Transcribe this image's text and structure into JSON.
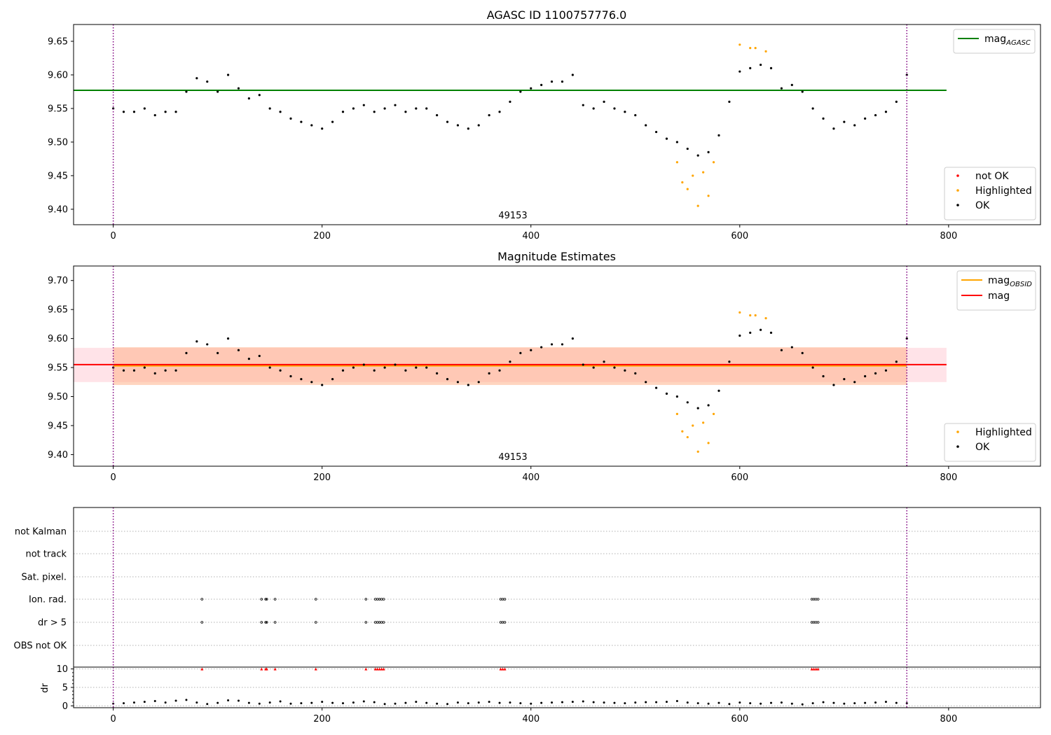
{
  "chart_data": [
    {
      "type": "scatter",
      "title": "AGASC ID 1100757776.0",
      "obsid_label": "49153",
      "xlim": [
        -38,
        888
      ],
      "ylim": [
        9.377,
        9.675
      ],
      "xticks": [
        0,
        200,
        400,
        600,
        800
      ],
      "yticks": [
        9.4,
        9.45,
        9.5,
        9.55,
        9.6,
        9.65
      ],
      "xticklabels": [
        "0",
        "200",
        "400",
        "600",
        "800"
      ],
      "yticklabels": [
        "9.40",
        "9.45",
        "9.50",
        "9.55",
        "9.60",
        "9.65"
      ],
      "vlines": [
        0,
        760
      ],
      "hlines": [
        {
          "name": "mag_AGASC",
          "value": 9.577,
          "x": [
            -38,
            798
          ],
          "color": "#008000"
        }
      ],
      "legend_lines": [
        {
          "label": "mag",
          "sub": "AGASC",
          "color": "#008000"
        }
      ],
      "legend_points": [
        {
          "label": "not OK",
          "color": "#ff0000"
        },
        {
          "label": "Highlighted",
          "color": "#ffa500"
        },
        {
          "label": "OK",
          "color": "#000000"
        }
      ],
      "series": [
        {
          "name": "OK",
          "color": "#000000",
          "x": [
            0,
            10,
            20,
            30,
            40,
            50,
            60,
            70,
            80,
            90,
            100,
            110,
            120,
            130,
            140,
            150,
            160,
            170,
            180,
            190,
            200,
            210,
            220,
            230,
            240,
            250,
            260,
            270,
            280,
            290,
            300,
            310,
            320,
            330,
            340,
            350,
            360,
            370,
            380,
            390,
            400,
            410,
            420,
            430,
            440,
            450,
            460,
            470,
            480,
            490,
            500,
            510,
            520,
            530,
            540,
            550,
            560,
            570,
            580,
            590,
            600,
            610,
            620,
            630,
            640,
            650,
            660,
            670,
            680,
            690,
            700,
            710,
            720,
            730,
            740,
            750,
            760
          ],
          "y": [
            9.55,
            9.545,
            9.545,
            9.55,
            9.54,
            9.545,
            9.545,
            9.575,
            9.595,
            9.59,
            9.575,
            9.6,
            9.58,
            9.565,
            9.57,
            9.55,
            9.545,
            9.535,
            9.53,
            9.525,
            9.52,
            9.53,
            9.545,
            9.55,
            9.555,
            9.545,
            9.55,
            9.555,
            9.545,
            9.55,
            9.55,
            9.54,
            9.53,
            9.525,
            9.52,
            9.525,
            9.54,
            9.545,
            9.56,
            9.575,
            9.58,
            9.585,
            9.59,
            9.59,
            9.6,
            9.555,
            9.55,
            9.56,
            9.55,
            9.545,
            9.54,
            9.525,
            9.515,
            9.505,
            9.5,
            9.49,
            9.48,
            9.485,
            9.51,
            9.56,
            9.605,
            9.61,
            9.615,
            9.61,
            9.58,
            9.585,
            9.575,
            9.55,
            9.535,
            9.52,
            9.53,
            9.525,
            9.535,
            9.54,
            9.545,
            9.56,
            9.6
          ]
        },
        {
          "name": "Highlighted",
          "color": "#ffa500",
          "x": [
            540,
            545,
            550,
            555,
            560,
            565,
            570,
            575,
            600,
            610,
            615,
            625
          ],
          "y": [
            9.47,
            9.44,
            9.43,
            9.45,
            9.405,
            9.455,
            9.42,
            9.47,
            9.645,
            9.64,
            9.64,
            9.635
          ]
        }
      ],
      "annotations": [
        "49153"
      ]
    },
    {
      "type": "scatter",
      "title": "Magnitude Estimates",
      "obsid_label": "49153",
      "xlim": [
        -38,
        888
      ],
      "ylim": [
        9.38,
        9.725
      ],
      "xticks": [
        0,
        200,
        400,
        600,
        800
      ],
      "yticks": [
        9.4,
        9.45,
        9.5,
        9.55,
        9.6,
        9.65,
        9.7
      ],
      "xticklabels": [
        "0",
        "200",
        "400",
        "600",
        "800"
      ],
      "yticklabels": [
        "9.40",
        "9.45",
        "9.50",
        "9.55",
        "9.60",
        "9.65",
        "9.70"
      ],
      "vlines": [
        0,
        760
      ],
      "bands": [
        {
          "name": "mag band",
          "x": [
            -38,
            798
          ],
          "y": [
            9.525,
            9.584
          ],
          "color": "#ffc0cb"
        },
        {
          "name": "mag_OBSID band",
          "x": [
            0,
            760
          ],
          "y": [
            9.52,
            9.585
          ],
          "color": "#ffb38a"
        }
      ],
      "hlines": [
        {
          "name": "mag_OBSID",
          "value": 9.553,
          "x": [
            0,
            760
          ],
          "color": "#ffa500"
        },
        {
          "name": "mag",
          "value": 9.555,
          "x": [
            -38,
            798
          ],
          "color": "#ff0000"
        }
      ],
      "legend_lines": [
        {
          "label": "mag",
          "sub": "OBSID",
          "color": "#ffa500"
        },
        {
          "label": "mag",
          "sub": "",
          "color": "#ff0000"
        }
      ],
      "legend_points": [
        {
          "label": "Highlighted",
          "color": "#ffa500"
        },
        {
          "label": "OK",
          "color": "#000000"
        }
      ],
      "series": [
        {
          "name": "OK",
          "color": "#000000",
          "x": [
            0,
            10,
            20,
            30,
            40,
            50,
            60,
            70,
            80,
            90,
            100,
            110,
            120,
            130,
            140,
            150,
            160,
            170,
            180,
            190,
            200,
            210,
            220,
            230,
            240,
            250,
            260,
            270,
            280,
            290,
            300,
            310,
            320,
            330,
            340,
            350,
            360,
            370,
            380,
            390,
            400,
            410,
            420,
            430,
            440,
            450,
            460,
            470,
            480,
            490,
            500,
            510,
            520,
            530,
            540,
            550,
            560,
            570,
            580,
            590,
            600,
            610,
            620,
            630,
            640,
            650,
            660,
            670,
            680,
            690,
            700,
            710,
            720,
            730,
            740,
            750,
            760
          ],
          "y": [
            9.55,
            9.545,
            9.545,
            9.55,
            9.54,
            9.545,
            9.545,
            9.575,
            9.595,
            9.59,
            9.575,
            9.6,
            9.58,
            9.565,
            9.57,
            9.55,
            9.545,
            9.535,
            9.53,
            9.525,
            9.52,
            9.53,
            9.545,
            9.55,
            9.555,
            9.545,
            9.55,
            9.555,
            9.545,
            9.55,
            9.55,
            9.54,
            9.53,
            9.525,
            9.52,
            9.525,
            9.54,
            9.545,
            9.56,
            9.575,
            9.58,
            9.585,
            9.59,
            9.59,
            9.6,
            9.555,
            9.55,
            9.56,
            9.55,
            9.545,
            9.54,
            9.525,
            9.515,
            9.505,
            9.5,
            9.49,
            9.48,
            9.485,
            9.51,
            9.56,
            9.605,
            9.61,
            9.615,
            9.61,
            9.58,
            9.585,
            9.575,
            9.55,
            9.535,
            9.52,
            9.53,
            9.525,
            9.535,
            9.54,
            9.545,
            9.56,
            9.6
          ]
        },
        {
          "name": "Highlighted",
          "color": "#ffa500",
          "x": [
            540,
            545,
            550,
            555,
            560,
            565,
            570,
            575,
            600,
            610,
            615,
            625
          ],
          "y": [
            9.47,
            9.44,
            9.43,
            9.45,
            9.405,
            9.455,
            9.42,
            9.47,
            9.645,
            9.64,
            9.64,
            9.635
          ]
        }
      ],
      "annotations": [
        "49153"
      ]
    },
    {
      "type": "scatter",
      "title": "",
      "xlim": [
        -38,
        888
      ],
      "vlines": [
        0,
        760
      ],
      "flag_labels": [
        "not Kalman",
        "not track",
        "Sat. pixel.",
        "Ion. rad.",
        "dr > 5",
        "OBS not OK"
      ],
      "flags": [
        {
          "name": "Ion. rad.",
          "x": [
            85,
            142,
            146,
            147,
            155,
            194,
            242,
            251,
            253,
            255,
            257,
            259,
            371,
            373,
            375,
            669,
            671,
            673,
            675
          ]
        },
        {
          "name": "dr > 5",
          "x": [
            85,
            142,
            146,
            147,
            155,
            194,
            242,
            251,
            253,
            255,
            257,
            259,
            371,
            373,
            375,
            669,
            671,
            673,
            675
          ]
        }
      ],
      "dr_ylabel": "dr",
      "dr_yticks": [
        0,
        5,
        10
      ],
      "dr_yticklabels": [
        "0",
        "5",
        "10"
      ],
      "dr_ylim": [
        -0.5,
        10.5
      ],
      "xticks": [
        0,
        200,
        400,
        600,
        800
      ],
      "xticklabels": [
        "0",
        "200",
        "400",
        "600",
        "800"
      ],
      "dr_clipped_x": [
        85,
        142,
        146,
        147,
        155,
        194,
        242,
        251,
        253,
        255,
        257,
        259,
        371,
        373,
        375,
        669,
        671,
        673,
        675
      ],
      "dr_series": {
        "name": "dr",
        "x": [
          0,
          10,
          20,
          30,
          40,
          50,
          60,
          70,
          80,
          90,
          100,
          110,
          120,
          130,
          140,
          150,
          160,
          170,
          180,
          190,
          200,
          210,
          220,
          230,
          240,
          250,
          260,
          270,
          280,
          290,
          300,
          310,
          320,
          330,
          340,
          350,
          360,
          370,
          380,
          390,
          400,
          410,
          420,
          430,
          440,
          450,
          460,
          470,
          480,
          490,
          500,
          510,
          520,
          530,
          540,
          550,
          560,
          570,
          580,
          590,
          600,
          610,
          620,
          630,
          640,
          650,
          660,
          670,
          680,
          690,
          700,
          710,
          720,
          730,
          740,
          750,
          760
        ],
        "y": [
          0.6,
          0.7,
          0.9,
          1.1,
          1.3,
          0.9,
          1.4,
          1.6,
          0.9,
          0.5,
          0.8,
          1.5,
          1.4,
          0.8,
          0.6,
          0.9,
          1.2,
          0.6,
          0.7,
          0.8,
          1.1,
          0.8,
          0.7,
          0.9,
          1.2,
          1.0,
          0.5,
          0.6,
          0.8,
          1.1,
          0.8,
          0.6,
          0.5,
          0.9,
          0.7,
          0.9,
          1.1,
          0.8,
          0.9,
          0.7,
          0.6,
          0.8,
          0.9,
          1.0,
          1.1,
          1.2,
          1.0,
          0.9,
          0.8,
          0.7,
          0.9,
          1.0,
          1.0,
          1.1,
          1.3,
          0.9,
          0.7,
          0.6,
          0.8,
          0.5,
          0.9,
          0.7,
          0.6,
          0.8,
          0.9,
          0.6,
          0.4,
          0.7,
          1.0,
          0.8,
          0.6,
          0.7,
          0.8,
          0.9,
          1.1,
          0.8,
          0.7
        ]
      }
    }
  ]
}
